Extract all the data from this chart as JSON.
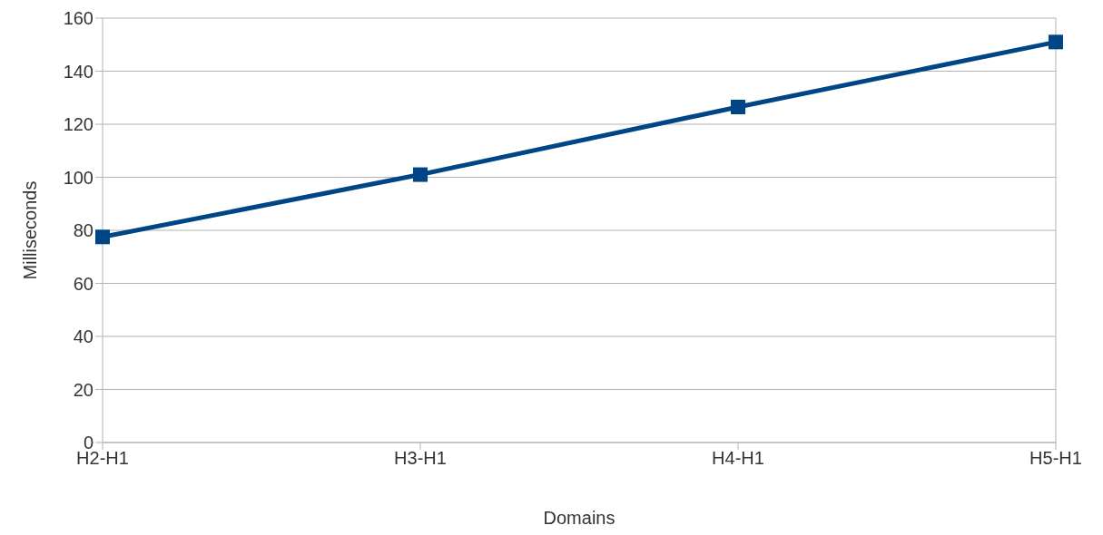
{
  "chart_data": {
    "type": "line",
    "xlabel": "Domains",
    "ylabel": "Milliseconds",
    "categories": [
      "H2-H1",
      "H3-H1",
      "H4-H1",
      "H5-H1"
    ],
    "series": [
      {
        "color": "#004586",
        "values": [
          77.5,
          101,
          126.5,
          151
        ]
      }
    ],
    "ylim": [
      0,
      160
    ],
    "yticks": [
      0,
      20,
      40,
      60,
      80,
      100,
      120,
      140,
      160
    ],
    "grid": "y",
    "legend": false,
    "marker": "square",
    "line_style": "solid"
  }
}
